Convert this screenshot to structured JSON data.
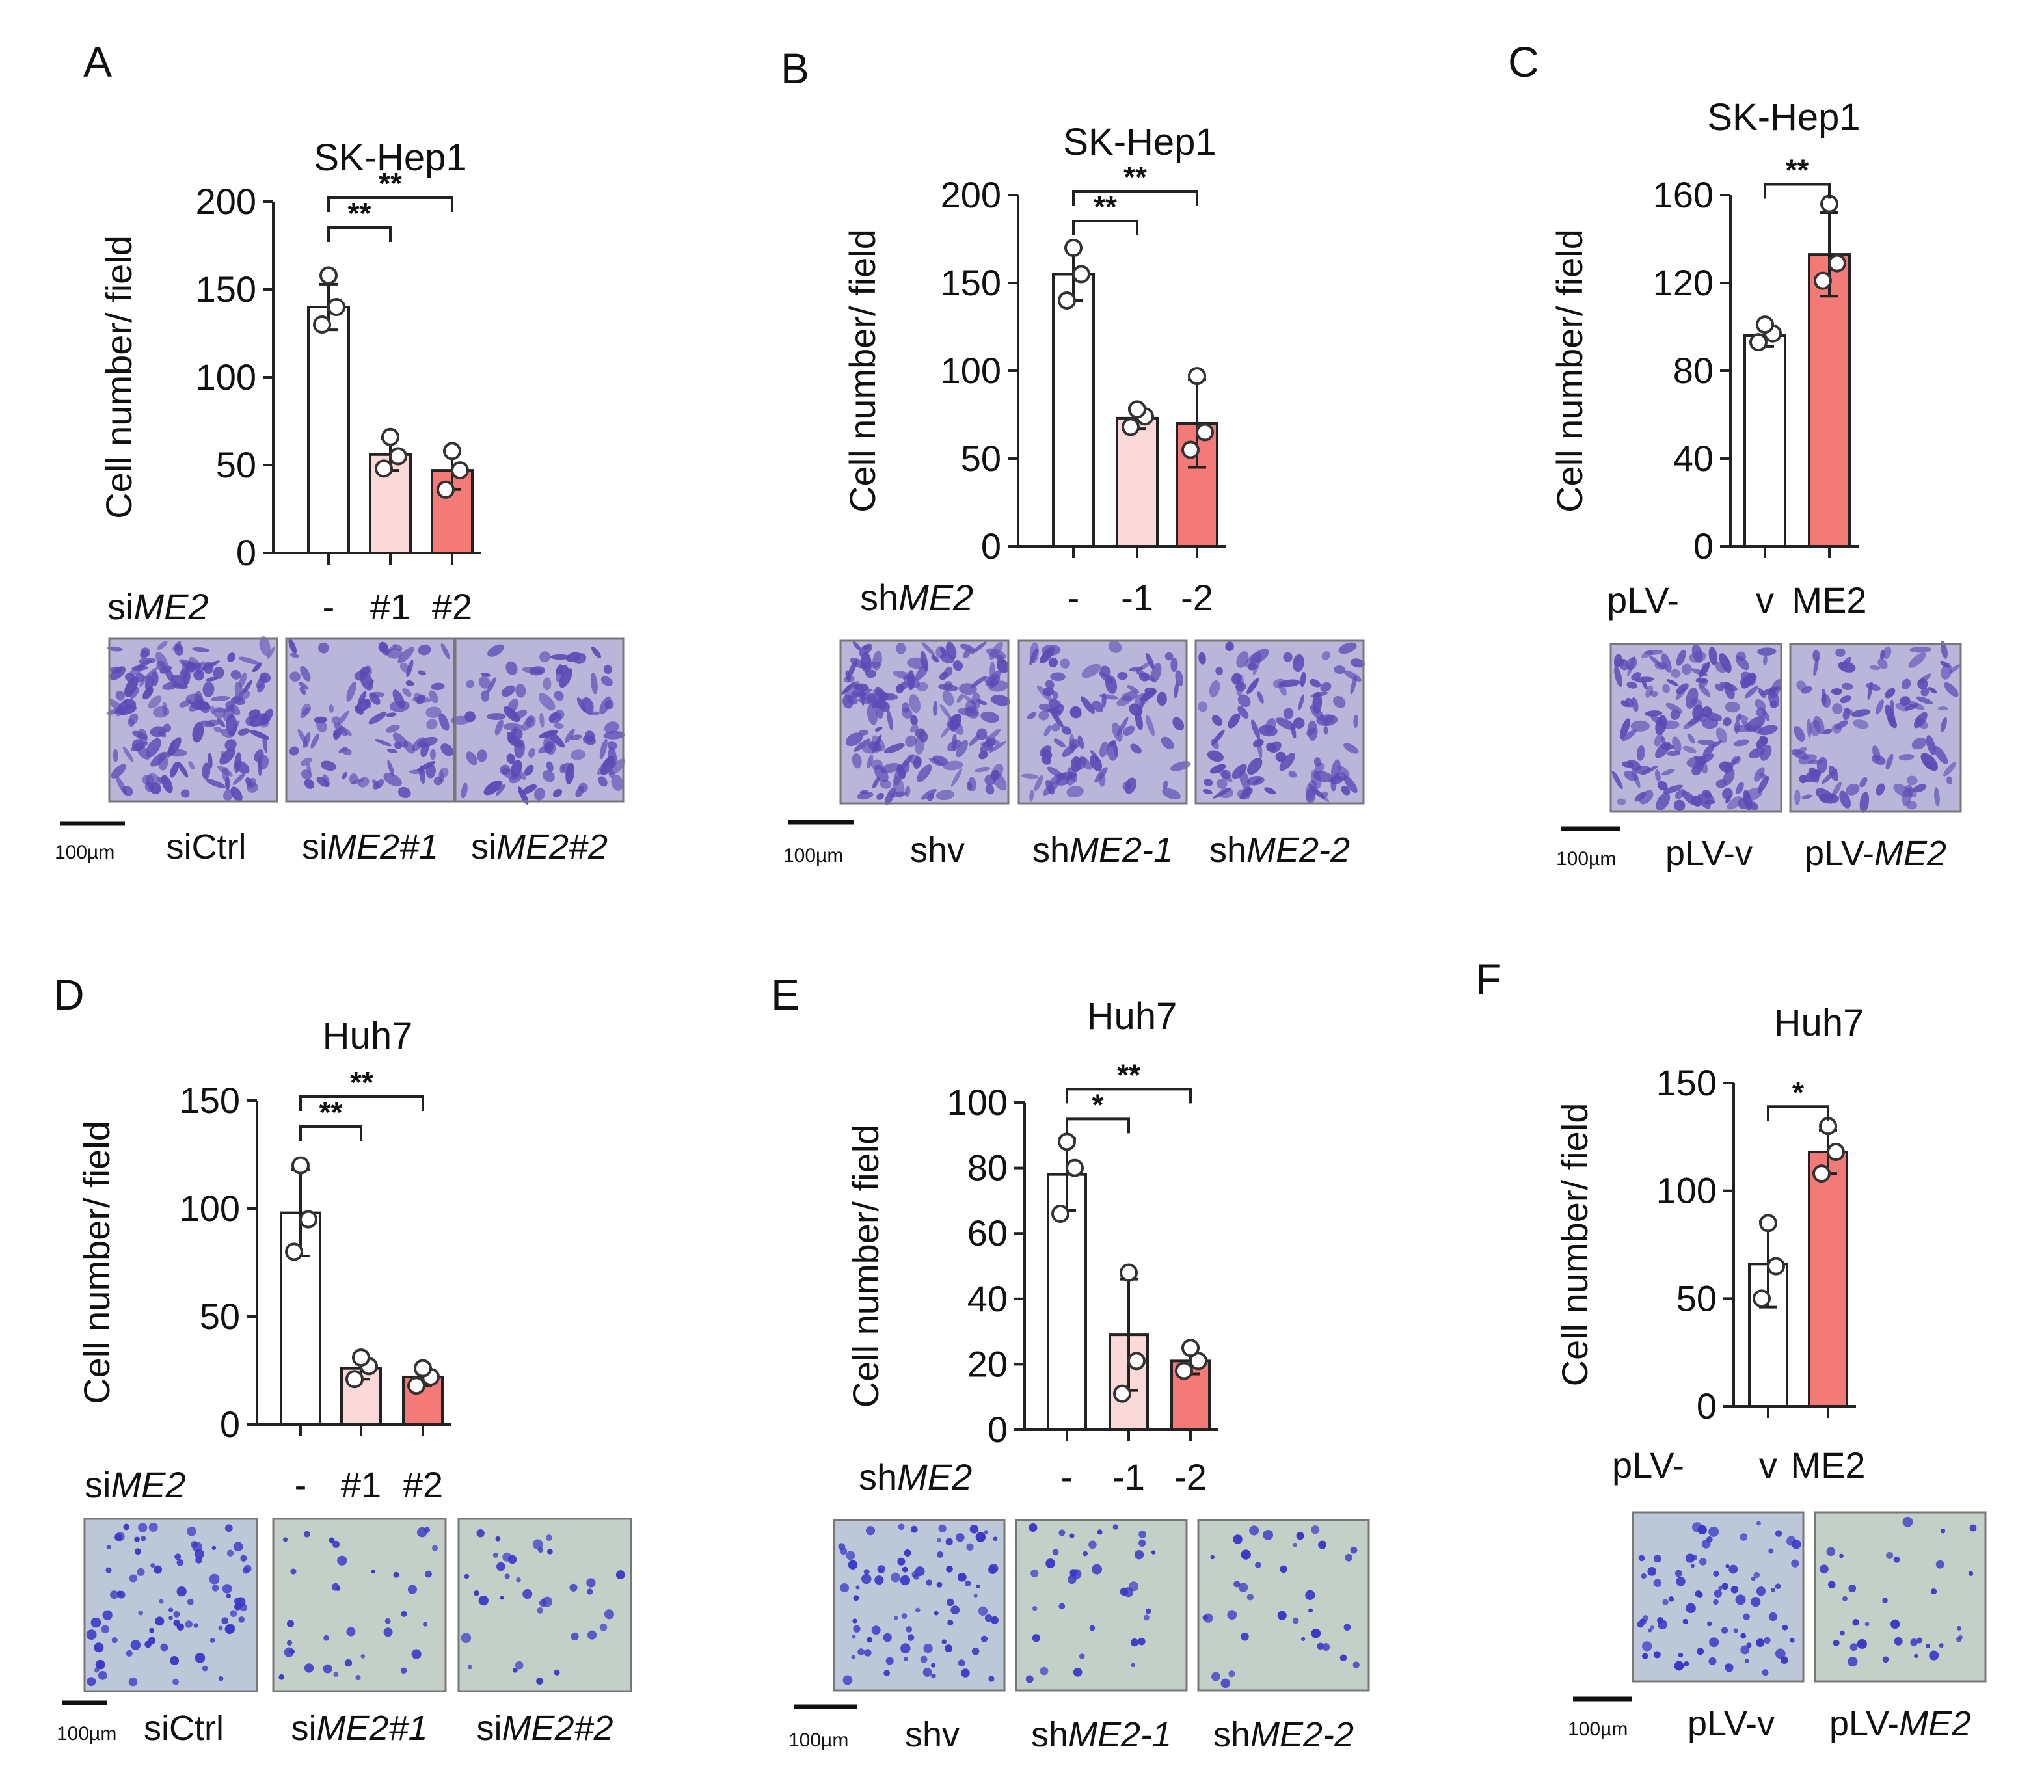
{
  "colors": {
    "ctrl": "#ffffff",
    "light": "#fbd9d9",
    "red": "#f47a78",
    "stain": "#5b4ab5",
    "axis": "#222222"
  },
  "icons": {
    "micrograph": "crystal-violet-stained-transwell-image"
  },
  "chart_data": [
    {
      "panel": "A",
      "type": "bar",
      "title": "SK-Hep1",
      "ylabel": "Cell number/ field",
      "yticks": [
        0,
        50,
        100,
        150,
        200
      ],
      "ylim": [
        0,
        200
      ],
      "group_prefix": "si",
      "group_gene": "ME2",
      "categories": [
        "-",
        "#1",
        "#2"
      ],
      "values": [
        140,
        56,
        47
      ],
      "err": [
        13,
        9,
        11
      ],
      "points": [
        [
          130,
          140,
          158
        ],
        [
          48,
          55,
          66
        ],
        [
          36,
          47,
          58
        ]
      ],
      "bar_colors": [
        "ctrl",
        "light",
        "red"
      ],
      "significance": [
        {
          "from": 0,
          "to": 1,
          "label": "**"
        },
        {
          "from": 0,
          "to": 2,
          "label": "**"
        }
      ],
      "micro_captions": [
        {
          "prefix": "siCtrl",
          "italic": ""
        },
        {
          "prefix": "si",
          "italic": "ME2#1"
        },
        {
          "prefix": "si",
          "italic": "ME2#2"
        }
      ],
      "scale_label": "100µm",
      "micro_tone": "dense"
    },
    {
      "panel": "B",
      "type": "bar",
      "title": "SK-Hep1",
      "ylabel": "Cell number/ field",
      "yticks": [
        0,
        50,
        100,
        150,
        200
      ],
      "ylim": [
        0,
        200
      ],
      "group_prefix": "sh",
      "group_gene": "ME2",
      "categories": [
        "-",
        "-1",
        "-2"
      ],
      "values": [
        155,
        73,
        70
      ],
      "err": [
        15,
        6,
        25
      ],
      "points": [
        [
          140,
          155,
          170
        ],
        [
          68,
          74,
          78
        ],
        [
          55,
          65,
          97
        ]
      ],
      "bar_colors": [
        "ctrl",
        "light",
        "red"
      ],
      "significance": [
        {
          "from": 0,
          "to": 1,
          "label": "**"
        },
        {
          "from": 0,
          "to": 2,
          "label": "**"
        }
      ],
      "micro_captions": [
        {
          "prefix": "shv",
          "italic": ""
        },
        {
          "prefix": "sh",
          "italic": "ME2-1"
        },
        {
          "prefix": "sh",
          "italic": "ME2-2"
        }
      ],
      "scale_label": "100µm",
      "micro_tone": "dense"
    },
    {
      "panel": "C",
      "type": "bar",
      "title": "SK-Hep1",
      "ylabel": "Cell number/ field",
      "yticks": [
        0,
        40,
        80,
        120,
        160
      ],
      "ylim": [
        0,
        160
      ],
      "group_prefix": "pLV-",
      "group_gene": "",
      "categories": [
        "v",
        "ME2"
      ],
      "values": [
        96,
        133
      ],
      "err": [
        5,
        19
      ],
      "points": [
        [
          93,
          97,
          101
        ],
        [
          121,
          129,
          156
        ]
      ],
      "bar_colors": [
        "ctrl",
        "red"
      ],
      "significance": [
        {
          "from": 0,
          "to": 1,
          "label": "**"
        }
      ],
      "micro_captions": [
        {
          "prefix": "pLV-v",
          "italic": ""
        },
        {
          "prefix": "pLV-",
          "italic": "ME2"
        }
      ],
      "scale_label": "100µm",
      "micro_tone": "dense"
    },
    {
      "panel": "D",
      "type": "bar",
      "title": "Huh7",
      "ylabel": "Cell number/ field",
      "yticks": [
        0,
        50,
        100,
        150
      ],
      "ylim": [
        0,
        150
      ],
      "group_prefix": "si",
      "group_gene": "ME2",
      "categories": [
        "-",
        "#1",
        "#2"
      ],
      "values": [
        98,
        26,
        22
      ],
      "err": [
        20,
        5,
        4
      ],
      "points": [
        [
          80,
          95,
          120
        ],
        [
          21,
          27,
          31
        ],
        [
          18,
          22,
          26
        ]
      ],
      "bar_colors": [
        "ctrl",
        "light",
        "red"
      ],
      "significance": [
        {
          "from": 0,
          "to": 1,
          "label": "**"
        },
        {
          "from": 0,
          "to": 2,
          "label": "**"
        }
      ],
      "micro_captions": [
        {
          "prefix": "siCtrl",
          "italic": ""
        },
        {
          "prefix": "si",
          "italic": "ME2#1"
        },
        {
          "prefix": "si",
          "italic": "ME2#2"
        }
      ],
      "scale_label": "100µm",
      "micro_tone": "sparse"
    },
    {
      "panel": "E",
      "type": "bar",
      "title": "Huh7",
      "ylabel": "Cell number/ field",
      "yticks": [
        0,
        20,
        40,
        60,
        80,
        100
      ],
      "ylim": [
        0,
        100
      ],
      "group_prefix": "sh",
      "group_gene": "ME2",
      "categories": [
        "-",
        "-1",
        "-2"
      ],
      "values": [
        78,
        29,
        21
      ],
      "err": [
        11,
        17,
        4
      ],
      "points": [
        [
          66,
          80,
          88
        ],
        [
          11,
          21,
          48
        ],
        [
          18,
          21,
          25
        ]
      ],
      "bar_colors": [
        "ctrl",
        "light",
        "red"
      ],
      "significance": [
        {
          "from": 0,
          "to": 1,
          "label": "*"
        },
        {
          "from": 0,
          "to": 2,
          "label": "**"
        }
      ],
      "micro_captions": [
        {
          "prefix": "shv",
          "italic": ""
        },
        {
          "prefix": "sh",
          "italic": "ME2-1"
        },
        {
          "prefix": "sh",
          "italic": "ME2-2"
        }
      ],
      "scale_label": "100µm",
      "micro_tone": "sparse"
    },
    {
      "panel": "F",
      "type": "bar",
      "title": "Huh7",
      "ylabel": "Cell number/ field",
      "yticks": [
        0,
        50,
        100,
        150
      ],
      "ylim": [
        0,
        150
      ],
      "group_prefix": "pLV-",
      "group_gene": "",
      "categories": [
        "v",
        "ME2"
      ],
      "values": [
        66,
        118
      ],
      "err": [
        20,
        10
      ],
      "points": [
        [
          50,
          65,
          85
        ],
        [
          108,
          118,
          130
        ]
      ],
      "bar_colors": [
        "ctrl",
        "red"
      ],
      "significance": [
        {
          "from": 0,
          "to": 1,
          "label": "*"
        }
      ],
      "micro_captions": [
        {
          "prefix": "pLV-v",
          "italic": ""
        },
        {
          "prefix": "pLV-",
          "italic": "ME2"
        }
      ],
      "scale_label": "100µm",
      "micro_tone": "sparse"
    }
  ]
}
